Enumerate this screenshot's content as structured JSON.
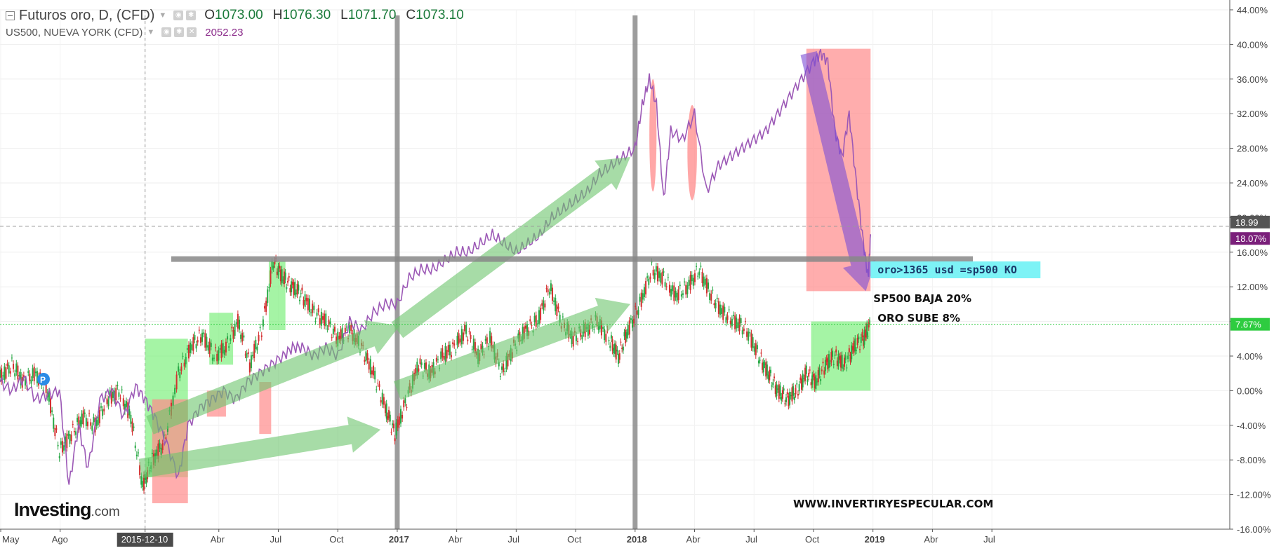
{
  "legend": {
    "main_symbol": "Futuros oro, D, (CFD)",
    "ohlc": [
      {
        "k": "O",
        "v": "1073.00"
      },
      {
        "k": "H",
        "v": "1076.30"
      },
      {
        "k": "L",
        "v": "1071.70"
      },
      {
        "k": "C",
        "v": "1073.10"
      }
    ],
    "second_symbol": "US500, NUEVA YORK (CFD)",
    "second_value": "2052.23"
  },
  "brand": {
    "name": "Investing",
    "domain": ".com"
  },
  "colors": {
    "gold_up": "#27a844",
    "gold_down": "#d32f2f",
    "sp500": "#9c59b6",
    "green_zone": "#7ff07f",
    "red_zone": "#ff8a8a",
    "green_arrow": "#6cc46c",
    "purple_arrow": "#7b4fd6",
    "cyan_box": "#7df3f6",
    "badge_green": "#2ecc40",
    "badge_purple": "#7a1f7a",
    "badge_gray": "#555555"
  },
  "chart_data": {
    "type": "line",
    "title": "Futuros oro, D, (CFD)",
    "xlabel": "",
    "ylabel": "",
    "ylim": [
      -16,
      44
    ],
    "y_unit": "%",
    "y_ticks": [
      "44.00%",
      "40.00%",
      "36.00%",
      "32.00%",
      "28.00%",
      "24.00%",
      "20.00%",
      "16.00%",
      "12.00%",
      "8.00%",
      "4.00%",
      "0.00%",
      "-4.00%",
      "-8.00%",
      "-12.00%",
      "-16.00%"
    ],
    "x_range": [
      2015.33,
      2020.5
    ],
    "x_ticks": [
      {
        "label": "May",
        "x": 2015.333
      },
      {
        "label": "Ago",
        "x": 2015.583
      },
      {
        "label": "2015-12-10",
        "x": 2015.94,
        "highlight": true
      },
      {
        "label": "Abr",
        "x": 2016.25
      },
      {
        "label": "Jul",
        "x": 2016.5
      },
      {
        "label": "Oct",
        "x": 2016.75
      },
      {
        "label": "2017",
        "x": 2017.0,
        "bold": true
      },
      {
        "label": "Abr",
        "x": 2017.25
      },
      {
        "label": "Jul",
        "x": 2017.5
      },
      {
        "label": "Oct",
        "x": 2017.75
      },
      {
        "label": "2018",
        "x": 2018.0,
        "bold": true
      },
      {
        "label": "Abr",
        "x": 2018.25
      },
      {
        "label": "Jul",
        "x": 2018.5
      },
      {
        "label": "Oct",
        "x": 2018.75
      },
      {
        "label": "2019",
        "x": 2019.0,
        "bold": true
      },
      {
        "label": "Abr",
        "x": 2019.25
      },
      {
        "label": "Jul",
        "x": 2019.5
      }
    ],
    "series": [
      {
        "name": "Futuros oro, D, (CFD)",
        "style": "candles",
        "x": [
          2015.33,
          2015.38,
          2015.43,
          2015.48,
          2015.53,
          2015.58,
          2015.63,
          2015.68,
          2015.73,
          2015.78,
          2015.83,
          2015.88,
          2015.93,
          2015.97,
          2016.02,
          2016.08,
          2016.13,
          2016.18,
          2016.23,
          2016.28,
          2016.33,
          2016.38,
          2016.43,
          2016.48,
          2016.52,
          2016.56,
          2016.6,
          2016.65,
          2016.7,
          2016.75,
          2016.8,
          2016.85,
          2016.9,
          2016.95,
          2016.99,
          2017.04,
          2017.09,
          2017.14,
          2017.19,
          2017.24,
          2017.29,
          2017.34,
          2017.39,
          2017.44,
          2017.49,
          2017.54,
          2017.59,
          2017.64,
          2017.69,
          2017.74,
          2017.79,
          2017.84,
          2017.89,
          2017.93,
          2017.97,
          2018.02,
          2018.07,
          2018.12,
          2018.17,
          2018.22,
          2018.27,
          2018.32,
          2018.37,
          2018.42,
          2018.47,
          2018.52,
          2018.56,
          2018.6,
          2018.64,
          2018.68,
          2018.72,
          2018.76,
          2018.8,
          2018.84,
          2018.88,
          2018.92,
          2018.96,
          2018.99
        ],
        "values": [
          1.5,
          3,
          1,
          2,
          0,
          -7,
          -5,
          -3,
          -4,
          -1,
          0,
          -3,
          -11,
          -8,
          -6,
          2,
          5,
          6.5,
          4,
          5,
          8,
          3,
          7,
          15,
          13,
          12,
          11,
          9,
          8,
          6,
          7,
          5,
          2,
          -2,
          -5,
          -1,
          3,
          2,
          4,
          5,
          7,
          4,
          6,
          2,
          5,
          7,
          8,
          12,
          8,
          6,
          7,
          8,
          6,
          4,
          7,
          10,
          14,
          13,
          11,
          12,
          14,
          11,
          9,
          8,
          7,
          4,
          2,
          0,
          -1,
          0,
          2,
          1,
          3,
          4,
          3,
          5,
          6,
          7.67
        ]
      },
      {
        "name": "US500, NUEVA YORK (CFD)",
        "style": "line",
        "x": [
          2015.33,
          2015.38,
          2015.43,
          2015.48,
          2015.53,
          2015.58,
          2015.62,
          2015.66,
          2015.7,
          2015.75,
          2015.8,
          2015.85,
          2015.9,
          2015.94,
          2015.98,
          2016.03,
          2016.08,
          2016.12,
          2016.17,
          2016.22,
          2016.27,
          2016.32,
          2016.37,
          2016.42,
          2016.47,
          2016.52,
          2016.56,
          2016.6,
          2016.65,
          2016.7,
          2016.75,
          2016.8,
          2016.85,
          2016.9,
          2016.95,
          2017.0,
          2017.05,
          2017.1,
          2017.15,
          2017.2,
          2017.25,
          2017.3,
          2017.35,
          2017.4,
          2017.45,
          2017.5,
          2017.55,
          2017.6,
          2017.65,
          2017.7,
          2017.75,
          2017.8,
          2017.85,
          2017.9,
          2017.95,
          2018.0,
          2018.03,
          2018.06,
          2018.09,
          2018.12,
          2018.15,
          2018.2,
          2018.25,
          2018.3,
          2018.35,
          2018.4,
          2018.45,
          2018.5,
          2018.55,
          2018.6,
          2018.65,
          2018.7,
          2018.75,
          2018.78,
          2018.81,
          2018.84,
          2018.87,
          2018.9,
          2018.93,
          2018.96,
          2018.98,
          2018.99
        ],
        "values": [
          1,
          0,
          1.5,
          -1,
          -0.5,
          0,
          -11,
          -4,
          -9,
          -1,
          0,
          -3,
          0.5,
          -1,
          -3,
          -6,
          -10,
          -4,
          -2,
          -1,
          0,
          -1,
          1,
          2,
          3,
          4,
          5,
          5,
          4,
          5,
          4,
          8,
          7,
          9,
          10,
          10,
          13,
          14,
          14,
          15,
          16,
          16,
          17,
          18,
          17,
          16,
          17,
          18,
          20,
          21,
          22,
          23,
          25,
          26,
          27,
          28,
          33,
          36,
          33,
          22,
          30,
          29,
          32,
          23,
          26,
          27,
          28,
          29,
          30,
          32,
          34,
          36,
          38,
          39,
          38,
          30,
          27,
          32,
          24,
          17,
          13,
          18.07
        ]
      }
    ],
    "price_labels": [
      "18.99",
      "18.07%",
      "7.67%"
    ],
    "annotations": [
      {
        "text": "oro>1365 usd =sp500  KO",
        "style": "cyan-box"
      },
      {
        "text": "SP500 BAJA 20%"
      },
      {
        "text": "ORO SUBE 8%"
      },
      {
        "text": "WWW.INVERTIRYESPECULAR.COM"
      }
    ],
    "grid": true,
    "legend_position": "top-left"
  }
}
